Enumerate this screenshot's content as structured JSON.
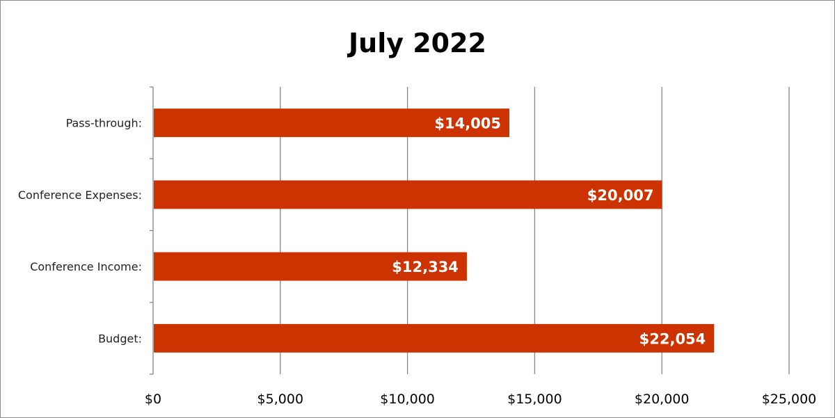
{
  "chart_data": {
    "type": "bar",
    "orientation": "horizontal",
    "title": "July 2022",
    "categories": [
      "Pass-through:",
      "Conference Expenses:",
      "Conference Income:",
      "Budget:"
    ],
    "values": [
      14005,
      20007,
      12334,
      22054
    ],
    "data_labels": [
      "$14,005",
      "$20,007",
      "$12,334",
      "$22,054"
    ],
    "x_ticks": [
      0,
      5000,
      10000,
      15000,
      20000,
      25000
    ],
    "x_tick_labels": [
      "$0",
      "$5,000",
      "$10,000",
      "$15,000",
      "$20,000",
      "$25,000"
    ],
    "xlim": [
      0,
      25000
    ],
    "xlabel": "",
    "ylabel": "",
    "grid": "vertical",
    "legend": "none"
  },
  "colors": {
    "bar": "#cc3300",
    "gridline": "#868686",
    "axis": "#868686",
    "frame": "#8c8c8c",
    "data_label": "#ffffff"
  }
}
